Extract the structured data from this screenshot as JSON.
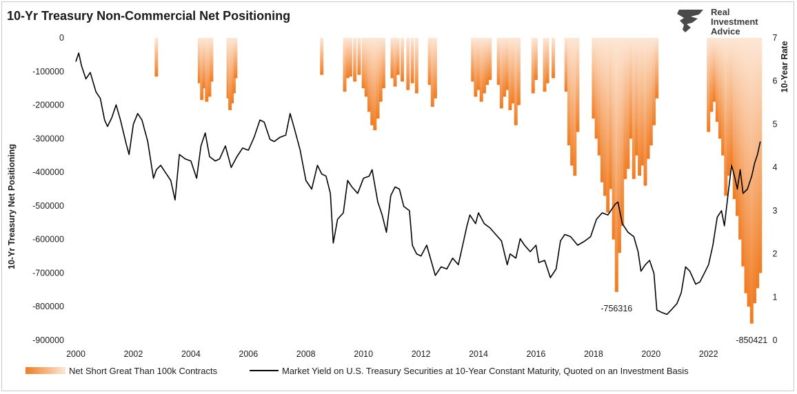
{
  "chart_data": {
    "type": "bar+line",
    "title": "10-Yr Treasury Non-Commercial Net Positioning",
    "brand": [
      "Real",
      "Investment",
      "Advice"
    ],
    "left_axis": {
      "label": "10-Yr Treasury Net Positioning",
      "range": [
        -900000,
        0
      ],
      "ticks": [
        "0",
        "-100000",
        "-200000",
        "-300000",
        "-400000",
        "-500000",
        "-600000",
        "-700000",
        "-800000",
        "-900000"
      ]
    },
    "right_axis": {
      "label": "10-Year Rate",
      "range": [
        0,
        7
      ],
      "ticks": [
        "7",
        "6",
        "5",
        "4",
        "3",
        "2",
        "1",
        "0"
      ]
    },
    "x_axis": {
      "range": [
        2000,
        2023.9
      ],
      "ticks": [
        "2000",
        "2002",
        "2004",
        "2006",
        "2008",
        "2010",
        "2012",
        "2014",
        "2016",
        "2018",
        "2020",
        "2022"
      ]
    },
    "legend": {
      "placement": "bottom",
      "bars_label": "Net Short Great Than 100k Contracts",
      "line_label": "Market Yield on U.S. Treasury Securities at 10-Year Constant Maturity, Quoted on an Investment Basis"
    },
    "colors": {
      "bars": "#f07c22",
      "line": "#000000"
    },
    "annotations": [
      {
        "text": "-756316",
        "x": 2018.8,
        "y": -756316
      },
      {
        "text": "-850421",
        "x": 2023.5,
        "y": -850421
      }
    ],
    "net_short_bars": [
      [
        2002.8,
        -115000
      ],
      [
        2004.3,
        -135000
      ],
      [
        2004.38,
        -185000
      ],
      [
        2004.46,
        -150000
      ],
      [
        2004.55,
        -190000
      ],
      [
        2004.65,
        -175000
      ],
      [
        2004.72,
        -130000
      ],
      [
        2005.3,
        -180000
      ],
      [
        2005.36,
        -215000
      ],
      [
        2005.43,
        -195000
      ],
      [
        2005.5,
        -165000
      ],
      [
        2005.56,
        -120000
      ],
      [
        2008.55,
        -110000
      ],
      [
        2009.35,
        -160000
      ],
      [
        2009.45,
        -120000
      ],
      [
        2009.55,
        -115000
      ],
      [
        2009.7,
        -130000
      ],
      [
        2009.85,
        -110000
      ],
      [
        2010.0,
        -150000
      ],
      [
        2010.1,
        -175000
      ],
      [
        2010.2,
        -220000
      ],
      [
        2010.3,
        -260000
      ],
      [
        2010.4,
        -275000
      ],
      [
        2010.5,
        -240000
      ],
      [
        2010.6,
        -190000
      ],
      [
        2010.7,
        -150000
      ],
      [
        2011.0,
        -120000
      ],
      [
        2011.1,
        -145000
      ],
      [
        2011.2,
        -110000
      ],
      [
        2011.35,
        -130000
      ],
      [
        2011.55,
        -155000
      ],
      [
        2011.7,
        -135000
      ],
      [
        2011.85,
        -165000
      ],
      [
        2012.3,
        -140000
      ],
      [
        2012.4,
        -205000
      ],
      [
        2012.5,
        -180000
      ],
      [
        2013.8,
        -130000
      ],
      [
        2013.9,
        -175000
      ],
      [
        2014.0,
        -155000
      ],
      [
        2014.1,
        -190000
      ],
      [
        2014.2,
        -165000
      ],
      [
        2014.3,
        -140000
      ],
      [
        2014.4,
        -125000
      ],
      [
        2014.7,
        -140000
      ],
      [
        2014.8,
        -210000
      ],
      [
        2014.9,
        -175000
      ],
      [
        2015.0,
        -155000
      ],
      [
        2015.1,
        -215000
      ],
      [
        2015.2,
        -195000
      ],
      [
        2015.3,
        -260000
      ],
      [
        2015.4,
        -200000
      ],
      [
        2015.9,
        -165000
      ],
      [
        2016.0,
        -125000
      ],
      [
        2016.3,
        -160000
      ],
      [
        2016.4,
        -135000
      ],
      [
        2016.6,
        -120000
      ],
      [
        2017.05,
        -160000
      ],
      [
        2017.15,
        -320000
      ],
      [
        2017.25,
        -380000
      ],
      [
        2017.35,
        -410000
      ],
      [
        2017.45,
        -280000
      ],
      [
        2018.0,
        -240000
      ],
      [
        2018.1,
        -300000
      ],
      [
        2018.2,
        -350000
      ],
      [
        2018.3,
        -430000
      ],
      [
        2018.4,
        -470000
      ],
      [
        2018.5,
        -520000
      ],
      [
        2018.6,
        -450000
      ],
      [
        2018.7,
        -600000
      ],
      [
        2018.8,
        -756316
      ],
      [
        2018.9,
        -640000
      ],
      [
        2019.0,
        -560000
      ],
      [
        2019.1,
        -420000
      ],
      [
        2019.2,
        -390000
      ],
      [
        2019.3,
        -300000
      ],
      [
        2019.4,
        -420000
      ],
      [
        2019.5,
        -350000
      ],
      [
        2019.6,
        -410000
      ],
      [
        2019.7,
        -380000
      ],
      [
        2019.8,
        -440000
      ],
      [
        2019.9,
        -360000
      ],
      [
        2020.0,
        -320000
      ],
      [
        2020.1,
        -260000
      ],
      [
        2020.2,
        -180000
      ],
      [
        2022.0,
        -280000
      ],
      [
        2022.1,
        -220000
      ],
      [
        2022.2,
        -190000
      ],
      [
        2022.3,
        -250000
      ],
      [
        2022.4,
        -300000
      ],
      [
        2022.5,
        -350000
      ],
      [
        2022.6,
        -470000
      ],
      [
        2022.7,
        -410000
      ],
      [
        2022.8,
        -380000
      ],
      [
        2022.9,
        -480000
      ],
      [
        2023.0,
        -530000
      ],
      [
        2023.1,
        -600000
      ],
      [
        2023.2,
        -680000
      ],
      [
        2023.3,
        -760000
      ],
      [
        2023.4,
        -800000
      ],
      [
        2023.5,
        -850421
      ],
      [
        2023.6,
        -790000
      ],
      [
        2023.7,
        -745000
      ],
      [
        2023.8,
        -700000
      ]
    ],
    "yield_line": [
      [
        2000.0,
        6.45
      ],
      [
        2000.1,
        6.65
      ],
      [
        2000.2,
        6.35
      ],
      [
        2000.35,
        6.05
      ],
      [
        2000.5,
        6.2
      ],
      [
        2000.7,
        5.75
      ],
      [
        2000.85,
        5.6
      ],
      [
        2001.0,
        5.1
      ],
      [
        2001.1,
        4.95
      ],
      [
        2001.25,
        5.15
      ],
      [
        2001.4,
        5.45
      ],
      [
        2001.55,
        5.1
      ],
      [
        2001.75,
        4.55
      ],
      [
        2001.85,
        4.3
      ],
      [
        2002.0,
        5.0
      ],
      [
        2002.15,
        5.25
      ],
      [
        2002.3,
        5.1
      ],
      [
        2002.5,
        4.6
      ],
      [
        2002.7,
        3.75
      ],
      [
        2002.8,
        3.95
      ],
      [
        2002.95,
        4.05
      ],
      [
        2003.1,
        3.9
      ],
      [
        2003.3,
        3.7
      ],
      [
        2003.45,
        3.25
      ],
      [
        2003.6,
        4.3
      ],
      [
        2003.8,
        4.2
      ],
      [
        2004.0,
        4.15
      ],
      [
        2004.2,
        3.75
      ],
      [
        2004.35,
        4.5
      ],
      [
        2004.5,
        4.8
      ],
      [
        2004.65,
        4.25
      ],
      [
        2004.85,
        4.15
      ],
      [
        2005.0,
        4.2
      ],
      [
        2005.2,
        4.5
      ],
      [
        2005.4,
        4.0
      ],
      [
        2005.6,
        4.25
      ],
      [
        2005.8,
        4.45
      ],
      [
        2006.0,
        4.4
      ],
      [
        2006.2,
        4.7
      ],
      [
        2006.4,
        5.1
      ],
      [
        2006.55,
        5.05
      ],
      [
        2006.75,
        4.65
      ],
      [
        2006.9,
        4.6
      ],
      [
        2007.1,
        4.7
      ],
      [
        2007.3,
        4.75
      ],
      [
        2007.45,
        5.25
      ],
      [
        2007.6,
        4.9
      ],
      [
        2007.8,
        4.4
      ],
      [
        2008.0,
        3.7
      ],
      [
        2008.2,
        3.5
      ],
      [
        2008.4,
        4.05
      ],
      [
        2008.55,
        3.85
      ],
      [
        2008.7,
        3.8
      ],
      [
        2008.85,
        3.4
      ],
      [
        2008.95,
        2.25
      ],
      [
        2009.1,
        2.8
      ],
      [
        2009.3,
        2.95
      ],
      [
        2009.45,
        3.7
      ],
      [
        2009.6,
        3.55
      ],
      [
        2009.8,
        3.4
      ],
      [
        2010.0,
        3.75
      ],
      [
        2010.2,
        3.8
      ],
      [
        2010.3,
        3.95
      ],
      [
        2010.5,
        3.2
      ],
      [
        2010.65,
        2.9
      ],
      [
        2010.8,
        2.5
      ],
      [
        2010.95,
        3.35
      ],
      [
        2011.1,
        3.55
      ],
      [
        2011.25,
        3.5
      ],
      [
        2011.4,
        3.1
      ],
      [
        2011.6,
        3.0
      ],
      [
        2011.7,
        2.2
      ],
      [
        2011.85,
        2.0
      ],
      [
        2012.0,
        1.95
      ],
      [
        2012.2,
        2.2
      ],
      [
        2012.35,
        1.85
      ],
      [
        2012.5,
        1.5
      ],
      [
        2012.7,
        1.7
      ],
      [
        2012.9,
        1.65
      ],
      [
        2013.1,
        1.9
      ],
      [
        2013.3,
        1.75
      ],
      [
        2013.45,
        2.2
      ],
      [
        2013.6,
        2.65
      ],
      [
        2013.7,
        2.9
      ],
      [
        2013.9,
        2.7
      ],
      [
        2014.0,
        2.95
      ],
      [
        2014.2,
        2.7
      ],
      [
        2014.4,
        2.6
      ],
      [
        2014.6,
        2.45
      ],
      [
        2014.8,
        2.3
      ],
      [
        2015.0,
        1.75
      ],
      [
        2015.1,
        2.0
      ],
      [
        2015.3,
        1.9
      ],
      [
        2015.45,
        2.35
      ],
      [
        2015.6,
        2.2
      ],
      [
        2015.8,
        2.05
      ],
      [
        2016.0,
        2.2
      ],
      [
        2016.1,
        1.8
      ],
      [
        2016.3,
        1.85
      ],
      [
        2016.5,
        1.45
      ],
      [
        2016.7,
        1.65
      ],
      [
        2016.85,
        2.3
      ],
      [
        2017.0,
        2.45
      ],
      [
        2017.2,
        2.4
      ],
      [
        2017.45,
        2.2
      ],
      [
        2017.7,
        2.3
      ],
      [
        2017.9,
        2.4
      ],
      [
        2018.1,
        2.8
      ],
      [
        2018.3,
        2.95
      ],
      [
        2018.5,
        2.9
      ],
      [
        2018.75,
        3.15
      ],
      [
        2018.85,
        3.2
      ],
      [
        2019.0,
        2.7
      ],
      [
        2019.2,
        2.5
      ],
      [
        2019.4,
        2.4
      ],
      [
        2019.55,
        2.05
      ],
      [
        2019.65,
        1.6
      ],
      [
        2019.8,
        1.75
      ],
      [
        2019.95,
        1.85
      ],
      [
        2020.1,
        1.55
      ],
      [
        2020.2,
        0.7
      ],
      [
        2020.35,
        0.65
      ],
      [
        2020.55,
        0.6
      ],
      [
        2020.7,
        0.7
      ],
      [
        2020.9,
        0.85
      ],
      [
        2021.05,
        1.1
      ],
      [
        2021.2,
        1.7
      ],
      [
        2021.35,
        1.6
      ],
      [
        2021.55,
        1.3
      ],
      [
        2021.7,
        1.35
      ],
      [
        2021.85,
        1.55
      ],
      [
        2022.0,
        1.75
      ],
      [
        2022.15,
        2.2
      ],
      [
        2022.3,
        2.85
      ],
      [
        2022.45,
        3.0
      ],
      [
        2022.55,
        2.65
      ],
      [
        2022.7,
        3.5
      ],
      [
        2022.8,
        4.05
      ],
      [
        2022.9,
        3.8
      ],
      [
        2023.0,
        3.5
      ],
      [
        2023.1,
        3.95
      ],
      [
        2023.2,
        3.4
      ],
      [
        2023.35,
        3.5
      ],
      [
        2023.5,
        3.8
      ],
      [
        2023.6,
        4.1
      ],
      [
        2023.7,
        4.3
      ],
      [
        2023.8,
        4.6
      ]
    ]
  }
}
